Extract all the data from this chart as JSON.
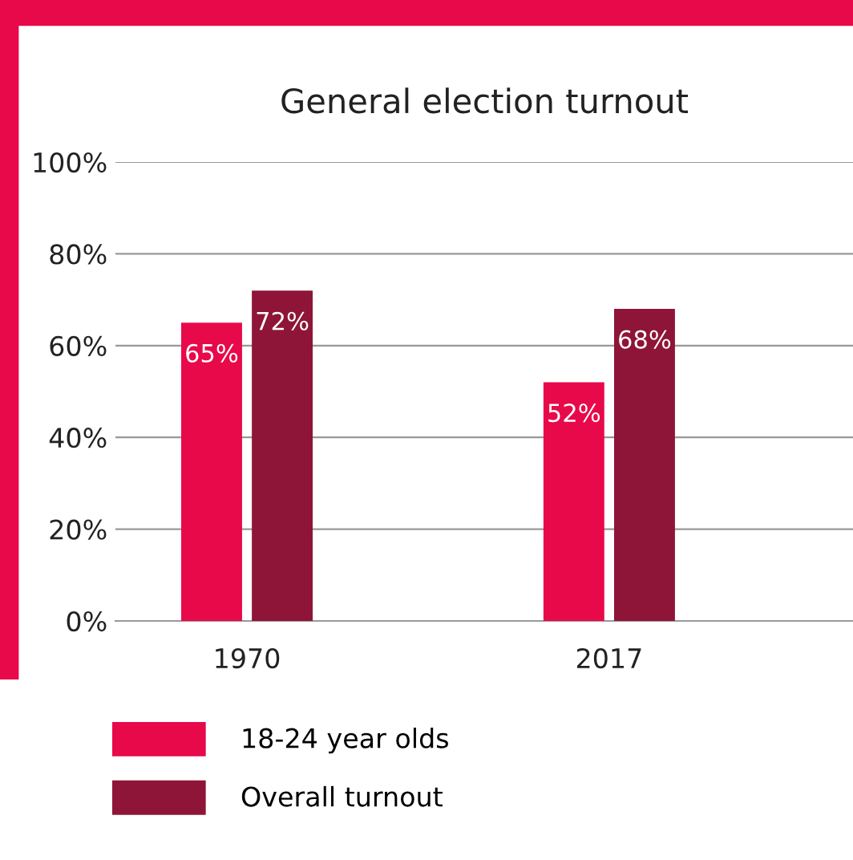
{
  "chart_data": {
    "type": "bar",
    "title": "General election turnout",
    "categories": [
      "1970",
      "2017"
    ],
    "series": [
      {
        "name": "18-24 year olds",
        "color": "#e8094a",
        "values": [
          65,
          52
        ],
        "value_labels": [
          "65%",
          "52%"
        ]
      },
      {
        "name": "Overall turnout",
        "color": "#8e1538",
        "values": [
          72,
          68
        ],
        "value_labels": [
          "72%",
          "68%"
        ]
      }
    ],
    "ylim": [
      0,
      100
    ],
    "yticks": [
      {
        "value": 0,
        "label": "0%"
      },
      {
        "value": 20,
        "label": "20%"
      },
      {
        "value": 40,
        "label": "40%"
      },
      {
        "value": 60,
        "label": "60%"
      },
      {
        "value": 80,
        "label": "80%"
      },
      {
        "value": 100,
        "label": "100%"
      }
    ],
    "grid": "y",
    "legend": "bottom left"
  }
}
